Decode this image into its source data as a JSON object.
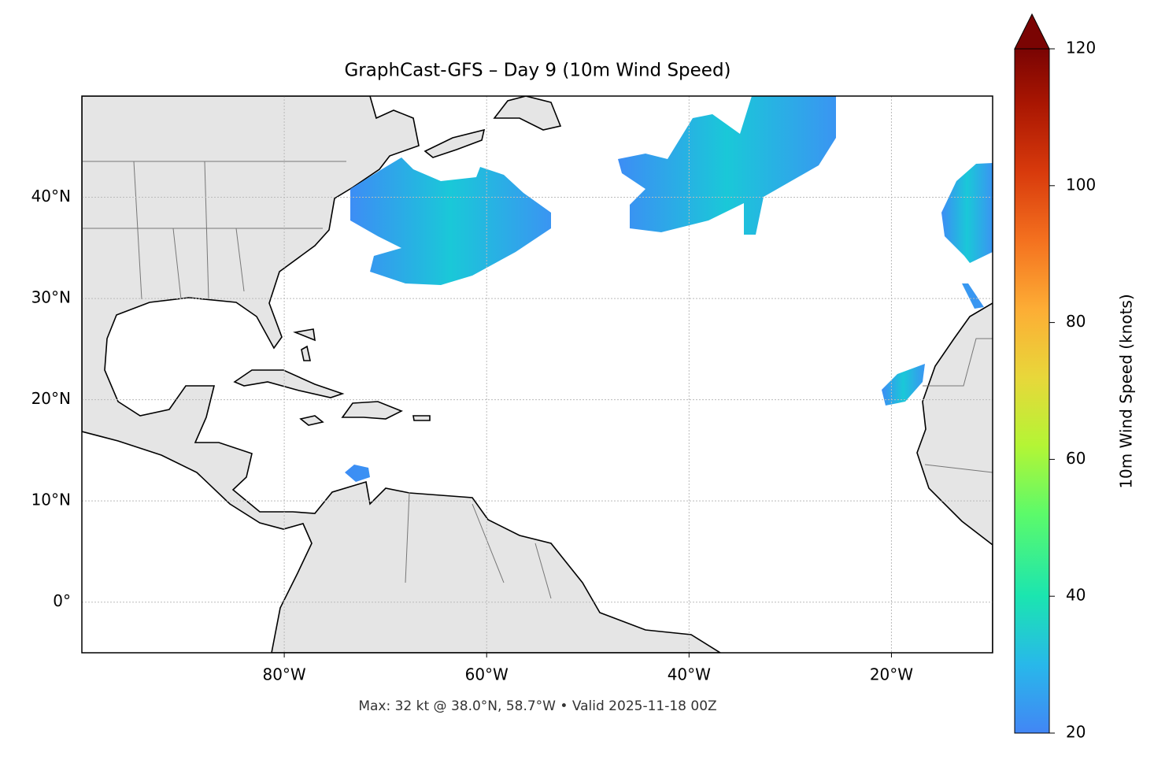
{
  "title": "GraphCast-GFS – Day 9 (10m Wind Speed)",
  "map": {
    "xlim": [
      -100,
      -10
    ],
    "ylim": [
      -5,
      50
    ],
    "xticks": [
      {
        "value": -80,
        "label": "80°W"
      },
      {
        "value": -60,
        "label": "60°W"
      },
      {
        "value": -40,
        "label": "40°W"
      },
      {
        "value": -20,
        "label": "20°W"
      }
    ],
    "yticks": [
      {
        "value": 0,
        "label": "0°"
      },
      {
        "value": 10,
        "label": "10°N"
      },
      {
        "value": 20,
        "label": "20°N"
      },
      {
        "value": 30,
        "label": "30°N"
      },
      {
        "value": 40,
        "label": "40°N"
      }
    ],
    "grid": true
  },
  "colorbar": {
    "label": "10m Wind Speed (knots)",
    "lim": [
      20,
      120
    ],
    "ticks": [
      20,
      40,
      60,
      80,
      100,
      120
    ]
  },
  "footer": "Max: 32 kt @ 38.0°N, 58.7°W • Valid 2025-11-18 00Z"
}
